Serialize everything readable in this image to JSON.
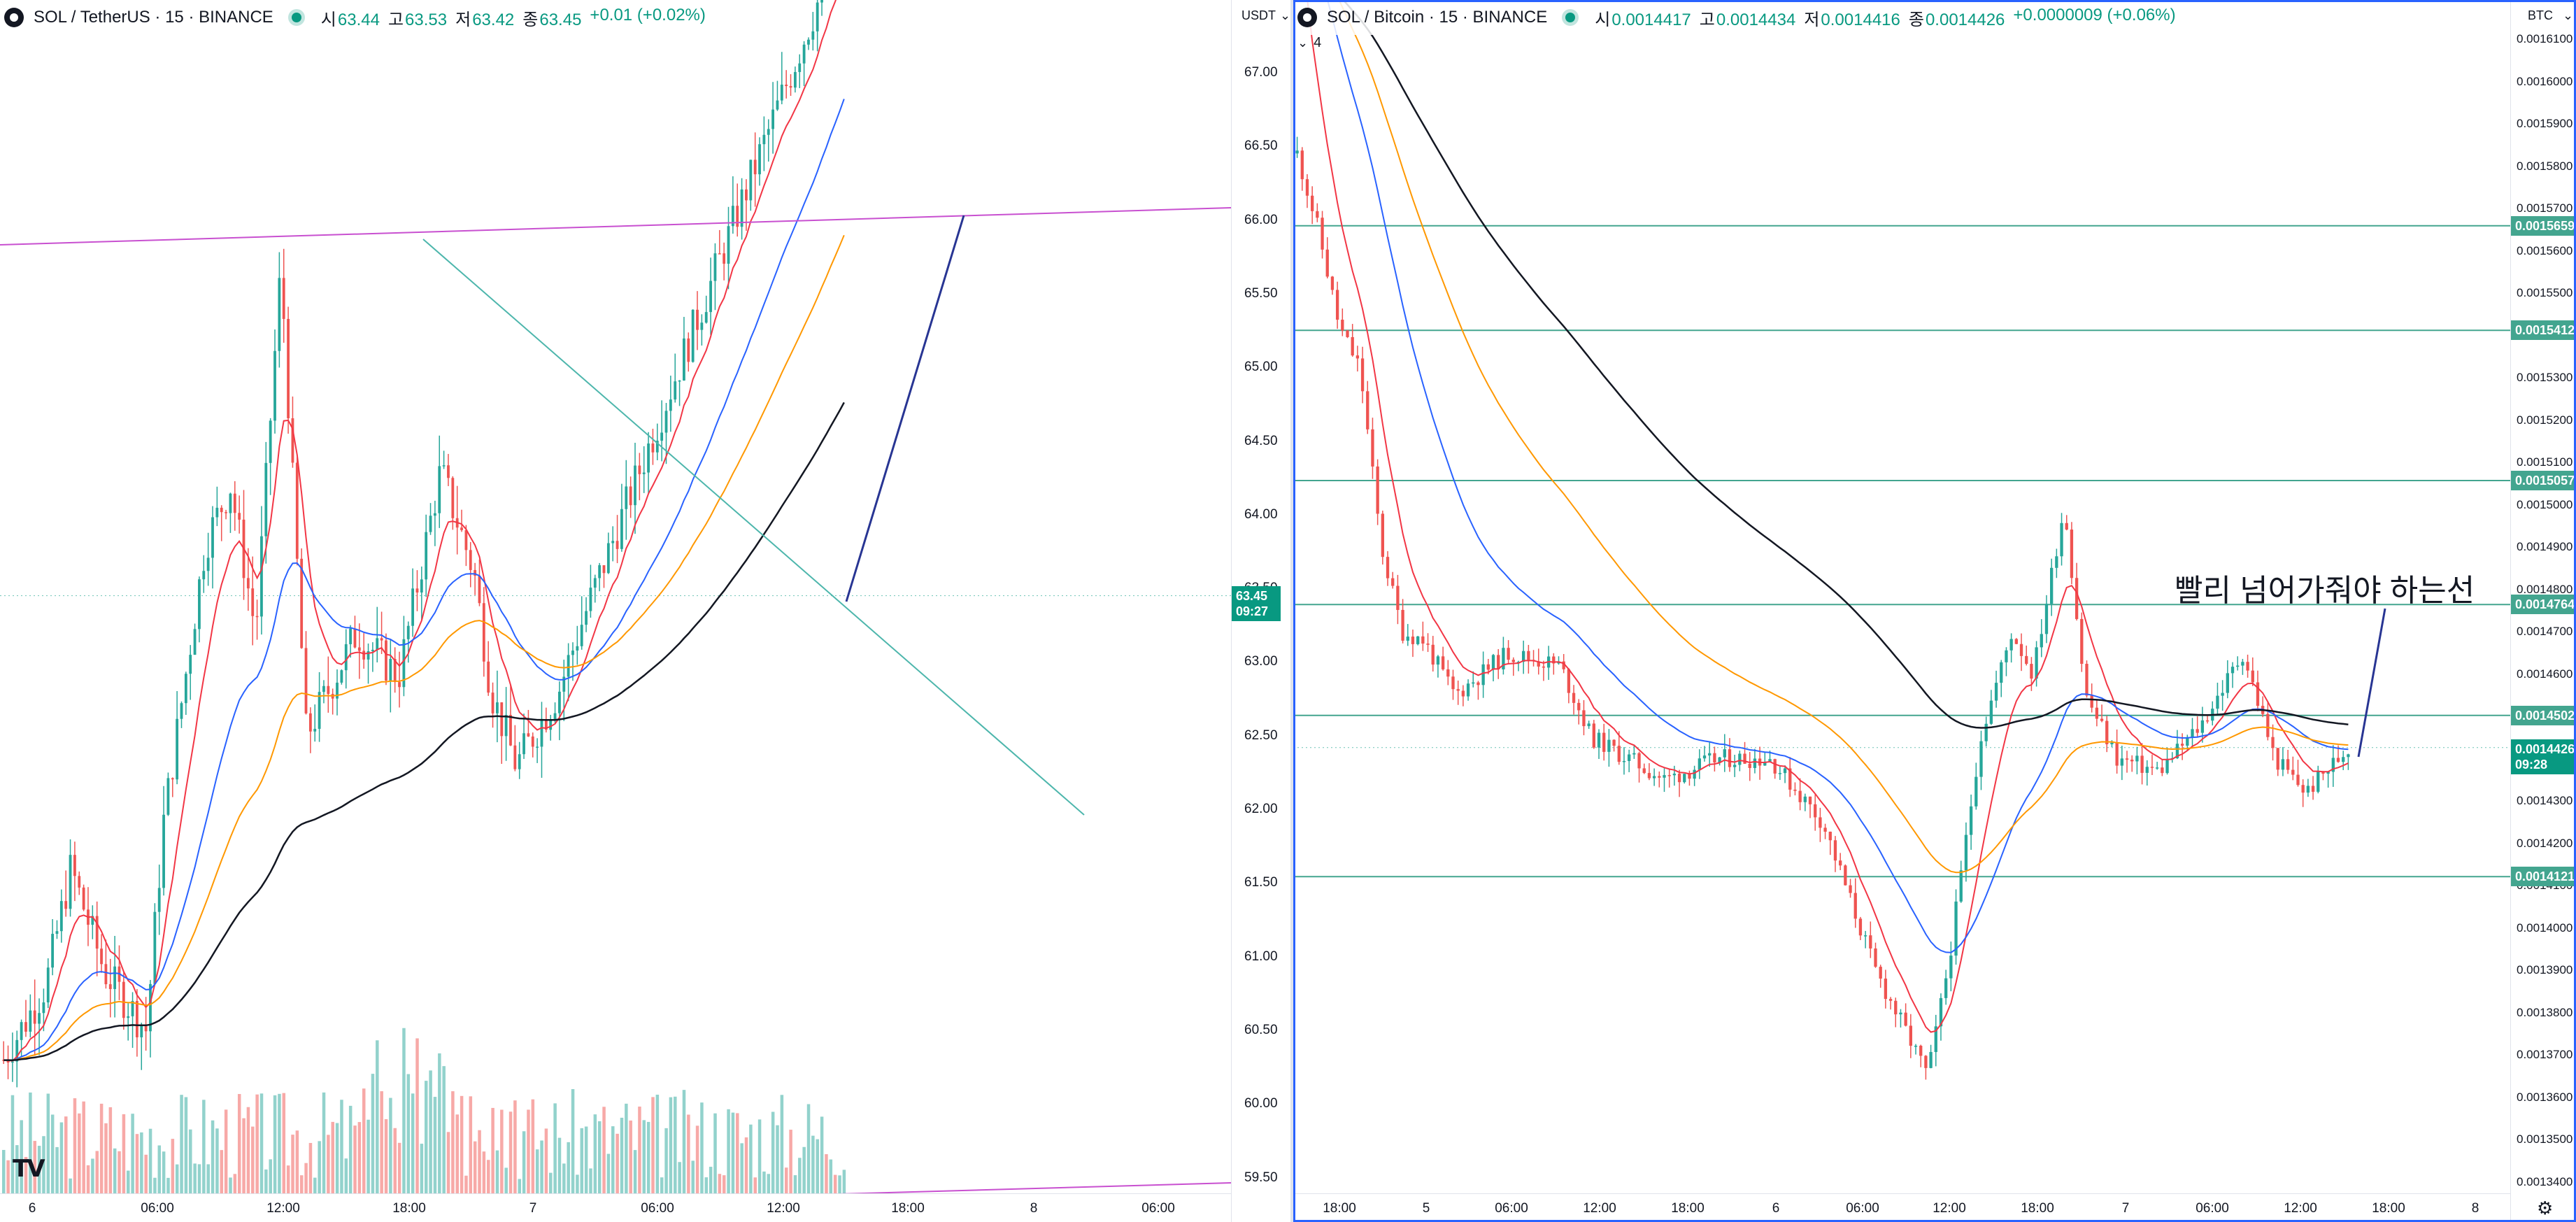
{
  "left": {
    "title": "SOL / TetherUS · 15 · BINANCE",
    "ohlc": [
      {
        "l": "시",
        "v": "63.44"
      },
      {
        "l": "고",
        "v": "63.53"
      },
      {
        "l": "저",
        "v": "63.42"
      },
      {
        "l": "종",
        "v": "63.45"
      }
    ],
    "change": "+0.01 (+0.02%)",
    "unit": "USDT",
    "y_ticks": [
      "67.00",
      "66.50",
      "66.00",
      "65.50",
      "65.00",
      "64.50",
      "64.00",
      "63.50",
      "63.00",
      "62.50",
      "62.00",
      "61.50",
      "61.00",
      "60.50",
      "60.00",
      "59.50"
    ],
    "x_ticks": [
      "6",
      "06:00",
      "12:00",
      "18:00",
      "7",
      "06:00",
      "12:00",
      "18:00",
      "8",
      "06:00"
    ],
    "current_price": "63.45",
    "countdown": "09:27"
  },
  "right": {
    "title": "SOL / Bitcoin · 15 · BINANCE",
    "ohlc": [
      {
        "l": "시",
        "v": "0.0014417"
      },
      {
        "l": "고",
        "v": "0.0014434"
      },
      {
        "l": "저",
        "v": "0.0014416"
      },
      {
        "l": "종",
        "v": "0.0014426"
      }
    ],
    "change": "+0.0000009 (+0.06%)",
    "collapsed_count": "4",
    "unit": "BTC",
    "y_ticks": [
      "0.0016100",
      "0.0016000",
      "0.0015900",
      "0.0015800",
      "0.0015700",
      "0.0015600",
      "0.0015500",
      "0.0015400",
      "0.0015300",
      "0.0015200",
      "0.0015100",
      "0.0015000",
      "0.0014900",
      "0.0014800",
      "0.0014700",
      "0.0014600",
      "0.0014500",
      "0.0014400",
      "0.0014300",
      "0.0014200",
      "0.0014100",
      "0.0014000",
      "0.0013900",
      "0.0013800",
      "0.0013700",
      "0.0013600",
      "0.0013500",
      "0.0013400"
    ],
    "x_ticks": [
      "18:00",
      "5",
      "06:00",
      "12:00",
      "18:00",
      "6",
      "06:00",
      "12:00",
      "18:00",
      "7",
      "06:00",
      "12:00",
      "18:00",
      "8"
    ],
    "levels": [
      "0.0015659",
      "0.0015412",
      "0.0015057",
      "0.0014764",
      "0.0014502",
      "0.0014121"
    ],
    "current_price": "0.0014426",
    "countdown": "09:28",
    "annotation": "빨리 넘어가줘야 하는선"
  },
  "colors": {
    "up": "#26a69a",
    "down": "#ef5350",
    "ma_red": "#f23645",
    "ma_blue": "#2962ff",
    "ma_orange": "#ff9800",
    "ma_black": "#131722",
    "trend_pink": "#c850d0",
    "trend_teal": "#4db6ac",
    "arrow": "#283593",
    "level": "#43a58f"
  },
  "icons": {
    "symbol": "sol-logo-icon",
    "live": "live-dot-icon",
    "collapse": "chevron-down-icon",
    "settings": "gear-icon",
    "brand": "tradingview-logo-icon"
  }
}
